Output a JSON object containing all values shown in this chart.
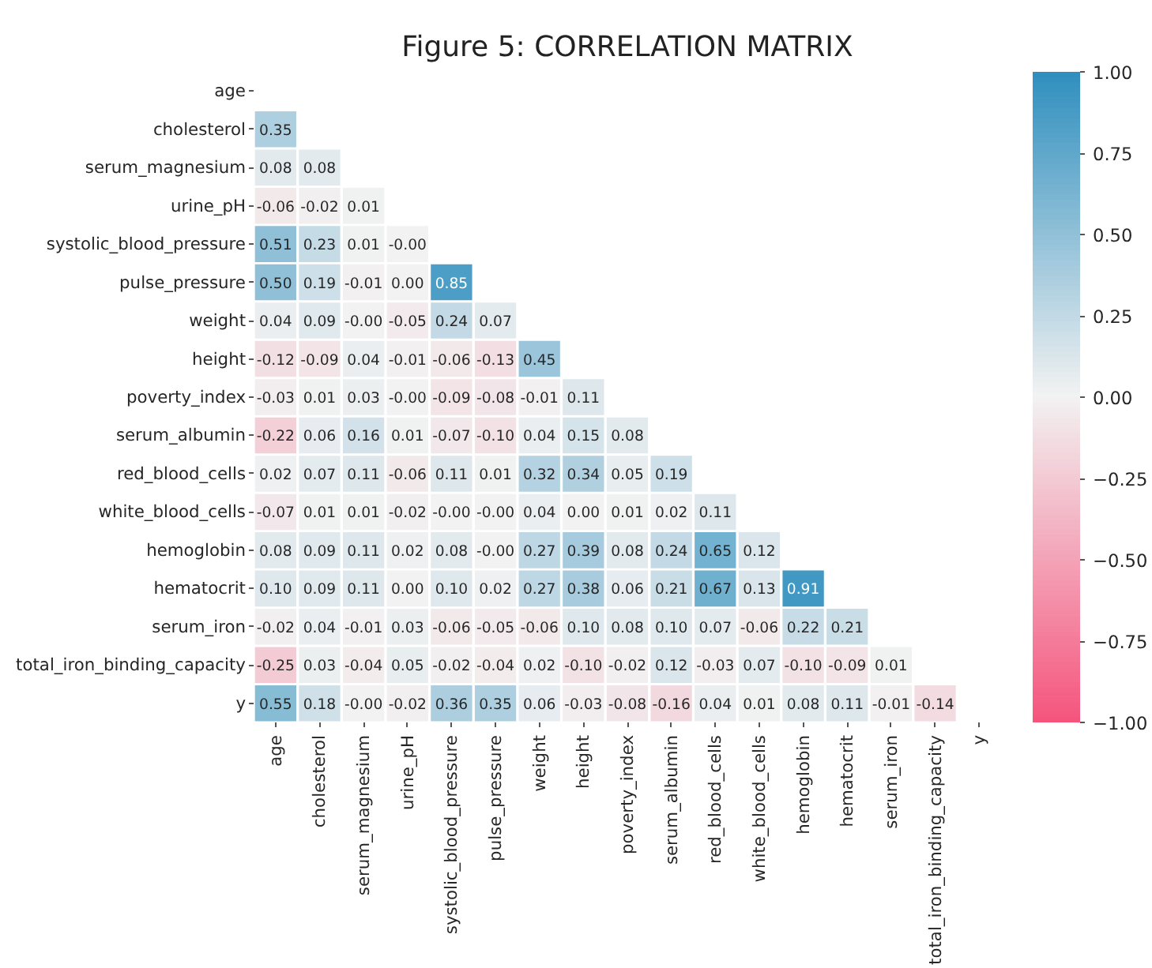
{
  "chart_data": {
    "type": "heatmap",
    "title": "Figure 5: CORRELATION MATRIX",
    "categories": [
      "age",
      "cholesterol",
      "serum_magnesium",
      "urine_pH",
      "systolic_blood_pressure",
      "pulse_pressure",
      "weight",
      "height",
      "poverty_index",
      "serum_albumin",
      "red_blood_cells",
      "white_blood_cells",
      "hemoglobin",
      "hematocrit",
      "serum_iron",
      "total_iron_binding_capacity",
      "y"
    ],
    "y_categories": [
      "age",
      "cholesterol",
      "serum_magnesium",
      "urine_pH",
      "systolic_blood_pressure",
      "pulse_pressure",
      "weight",
      "height",
      "poverty_index",
      "serum_albumin",
      "red_blood_cells",
      "white_blood_cells",
      "hemoglobin",
      "hematocrit",
      "serum_iron",
      "total_iron_binding_capacity",
      "y"
    ],
    "cells": [
      [
        null,
        null,
        null,
        null,
        null,
        null,
        null,
        null,
        null,
        null,
        null,
        null,
        null,
        null,
        null,
        null,
        null
      ],
      [
        0.35,
        null,
        null,
        null,
        null,
        null,
        null,
        null,
        null,
        null,
        null,
        null,
        null,
        null,
        null,
        null,
        null
      ],
      [
        0.08,
        0.08,
        null,
        null,
        null,
        null,
        null,
        null,
        null,
        null,
        null,
        null,
        null,
        null,
        null,
        null,
        null
      ],
      [
        -0.06,
        -0.02,
        0.01,
        null,
        null,
        null,
        null,
        null,
        null,
        null,
        null,
        null,
        null,
        null,
        null,
        null,
        null
      ],
      [
        0.51,
        0.23,
        0.01,
        -0.0,
        null,
        null,
        null,
        null,
        null,
        null,
        null,
        null,
        null,
        null,
        null,
        null,
        null
      ],
      [
        0.5,
        0.19,
        -0.01,
        0.0,
        0.85,
        null,
        null,
        null,
        null,
        null,
        null,
        null,
        null,
        null,
        null,
        null,
        null
      ],
      [
        0.04,
        0.09,
        -0.0,
        -0.05,
        0.24,
        0.07,
        null,
        null,
        null,
        null,
        null,
        null,
        null,
        null,
        null,
        null,
        null
      ],
      [
        -0.12,
        -0.09,
        0.04,
        -0.01,
        -0.06,
        -0.13,
        0.45,
        null,
        null,
        null,
        null,
        null,
        null,
        null,
        null,
        null,
        null
      ],
      [
        -0.03,
        0.01,
        0.03,
        -0.0,
        -0.09,
        -0.08,
        -0.01,
        0.11,
        null,
        null,
        null,
        null,
        null,
        null,
        null,
        null,
        null
      ],
      [
        -0.22,
        0.06,
        0.16,
        0.01,
        -0.07,
        -0.1,
        0.04,
        0.15,
        0.08,
        null,
        null,
        null,
        null,
        null,
        null,
        null,
        null
      ],
      [
        0.02,
        0.07,
        0.11,
        -0.06,
        0.11,
        0.01,
        0.32,
        0.34,
        0.05,
        0.19,
        null,
        null,
        null,
        null,
        null,
        null,
        null
      ],
      [
        -0.07,
        0.01,
        0.01,
        -0.02,
        -0.0,
        -0.0,
        0.04,
        0.0,
        0.01,
        0.02,
        0.11,
        null,
        null,
        null,
        null,
        null,
        null
      ],
      [
        0.08,
        0.09,
        0.11,
        0.02,
        0.08,
        -0.0,
        0.27,
        0.39,
        0.08,
        0.24,
        0.65,
        0.12,
        null,
        null,
        null,
        null,
        null
      ],
      [
        0.1,
        0.09,
        0.11,
        0.0,
        0.1,
        0.02,
        0.27,
        0.38,
        0.06,
        0.21,
        0.67,
        0.13,
        0.91,
        null,
        null,
        null,
        null
      ],
      [
        -0.02,
        0.04,
        -0.01,
        0.03,
        -0.06,
        -0.05,
        -0.06,
        0.1,
        0.08,
        0.1,
        0.07,
        -0.06,
        0.22,
        0.21,
        null,
        null,
        null
      ],
      [
        -0.25,
        0.03,
        -0.04,
        0.05,
        -0.02,
        -0.04,
        0.02,
        -0.1,
        -0.02,
        0.12,
        -0.03,
        0.07,
        -0.1,
        -0.09,
        0.01,
        null,
        null
      ],
      [
        0.55,
        0.18,
        -0.0,
        -0.02,
        0.36,
        0.35,
        0.06,
        -0.03,
        -0.08,
        -0.16,
        0.04,
        0.01,
        0.08,
        0.11,
        -0.01,
        -0.14,
        null
      ]
    ],
    "cell_labels": [
      [
        null,
        null,
        null,
        null,
        null,
        null,
        null,
        null,
        null,
        null,
        null,
        null,
        null,
        null,
        null,
        null,
        null
      ],
      [
        "0.35",
        null,
        null,
        null,
        null,
        null,
        null,
        null,
        null,
        null,
        null,
        null,
        null,
        null,
        null,
        null,
        null
      ],
      [
        "0.08",
        "0.08",
        null,
        null,
        null,
        null,
        null,
        null,
        null,
        null,
        null,
        null,
        null,
        null,
        null,
        null,
        null
      ],
      [
        "-0.06",
        "-0.02",
        "0.01",
        null,
        null,
        null,
        null,
        null,
        null,
        null,
        null,
        null,
        null,
        null,
        null,
        null,
        null
      ],
      [
        "0.51",
        "0.23",
        "0.01",
        "-0.00",
        null,
        null,
        null,
        null,
        null,
        null,
        null,
        null,
        null,
        null,
        null,
        null,
        null
      ],
      [
        "0.50",
        "0.19",
        "-0.01",
        "0.00",
        "0.85",
        null,
        null,
        null,
        null,
        null,
        null,
        null,
        null,
        null,
        null,
        null,
        null
      ],
      [
        "0.04",
        "0.09",
        "-0.00",
        "-0.05",
        "0.24",
        "0.07",
        null,
        null,
        null,
        null,
        null,
        null,
        null,
        null,
        null,
        null,
        null
      ],
      [
        "-0.12",
        "-0.09",
        "0.04",
        "-0.01",
        "-0.06",
        "-0.13",
        "0.45",
        null,
        null,
        null,
        null,
        null,
        null,
        null,
        null,
        null,
        null
      ],
      [
        "-0.03",
        "0.01",
        "0.03",
        "-0.00",
        "-0.09",
        "-0.08",
        "-0.01",
        "0.11",
        null,
        null,
        null,
        null,
        null,
        null,
        null,
        null,
        null
      ],
      [
        "-0.22",
        "0.06",
        "0.16",
        "0.01",
        "-0.07",
        "-0.10",
        "0.04",
        "0.15",
        "0.08",
        null,
        null,
        null,
        null,
        null,
        null,
        null,
        null
      ],
      [
        "0.02",
        "0.07",
        "0.11",
        "-0.06",
        "0.11",
        "0.01",
        "0.32",
        "0.34",
        "0.05",
        "0.19",
        null,
        null,
        null,
        null,
        null,
        null,
        null
      ],
      [
        "-0.07",
        "0.01",
        "0.01",
        "-0.02",
        "-0.00",
        "-0.00",
        "0.04",
        "0.00",
        "0.01",
        "0.02",
        "0.11",
        null,
        null,
        null,
        null,
        null,
        null
      ],
      [
        "0.08",
        "0.09",
        "0.11",
        "0.02",
        "0.08",
        "-0.00",
        "0.27",
        "0.39",
        "0.08",
        "0.24",
        "0.65",
        "0.12",
        null,
        null,
        null,
        null,
        null
      ],
      [
        "0.10",
        "0.09",
        "0.11",
        "0.00",
        "0.10",
        "0.02",
        "0.27",
        "0.38",
        "0.06",
        "0.21",
        "0.67",
        "0.13",
        "0.91",
        null,
        null,
        null,
        null
      ],
      [
        "-0.02",
        "0.04",
        "-0.01",
        "0.03",
        "-0.06",
        "-0.05",
        "-0.06",
        "0.10",
        "0.08",
        "0.10",
        "0.07",
        "-0.06",
        "0.22",
        "0.21",
        null,
        null,
        null
      ],
      [
        "-0.25",
        "0.03",
        "-0.04",
        "0.05",
        "-0.02",
        "-0.04",
        "0.02",
        "-0.10",
        "-0.02",
        "0.12",
        "-0.03",
        "0.07",
        "-0.10",
        "-0.09",
        "0.01",
        null,
        null
      ],
      [
        "0.55",
        "0.18",
        "-0.00",
        "-0.02",
        "0.36",
        "0.35",
        "0.06",
        "-0.03",
        "-0.08",
        "-0.16",
        "0.04",
        "0.01",
        "0.08",
        "0.11",
        "-0.01",
        "-0.14",
        null
      ]
    ],
    "clim": [
      -1.0,
      1.0
    ],
    "cticks": [
      {
        "value": 1.0,
        "label": "1.00"
      },
      {
        "value": 0.75,
        "label": "0.75"
      },
      {
        "value": 0.5,
        "label": "0.50"
      },
      {
        "value": 0.25,
        "label": "0.25"
      },
      {
        "value": 0.0,
        "label": "0.00"
      },
      {
        "value": -0.25,
        "label": "−0.25"
      },
      {
        "value": -0.5,
        "label": "−0.50"
      },
      {
        "value": -0.75,
        "label": "−0.75"
      },
      {
        "value": -1.0,
        "label": "−1.00"
      }
    ]
  }
}
